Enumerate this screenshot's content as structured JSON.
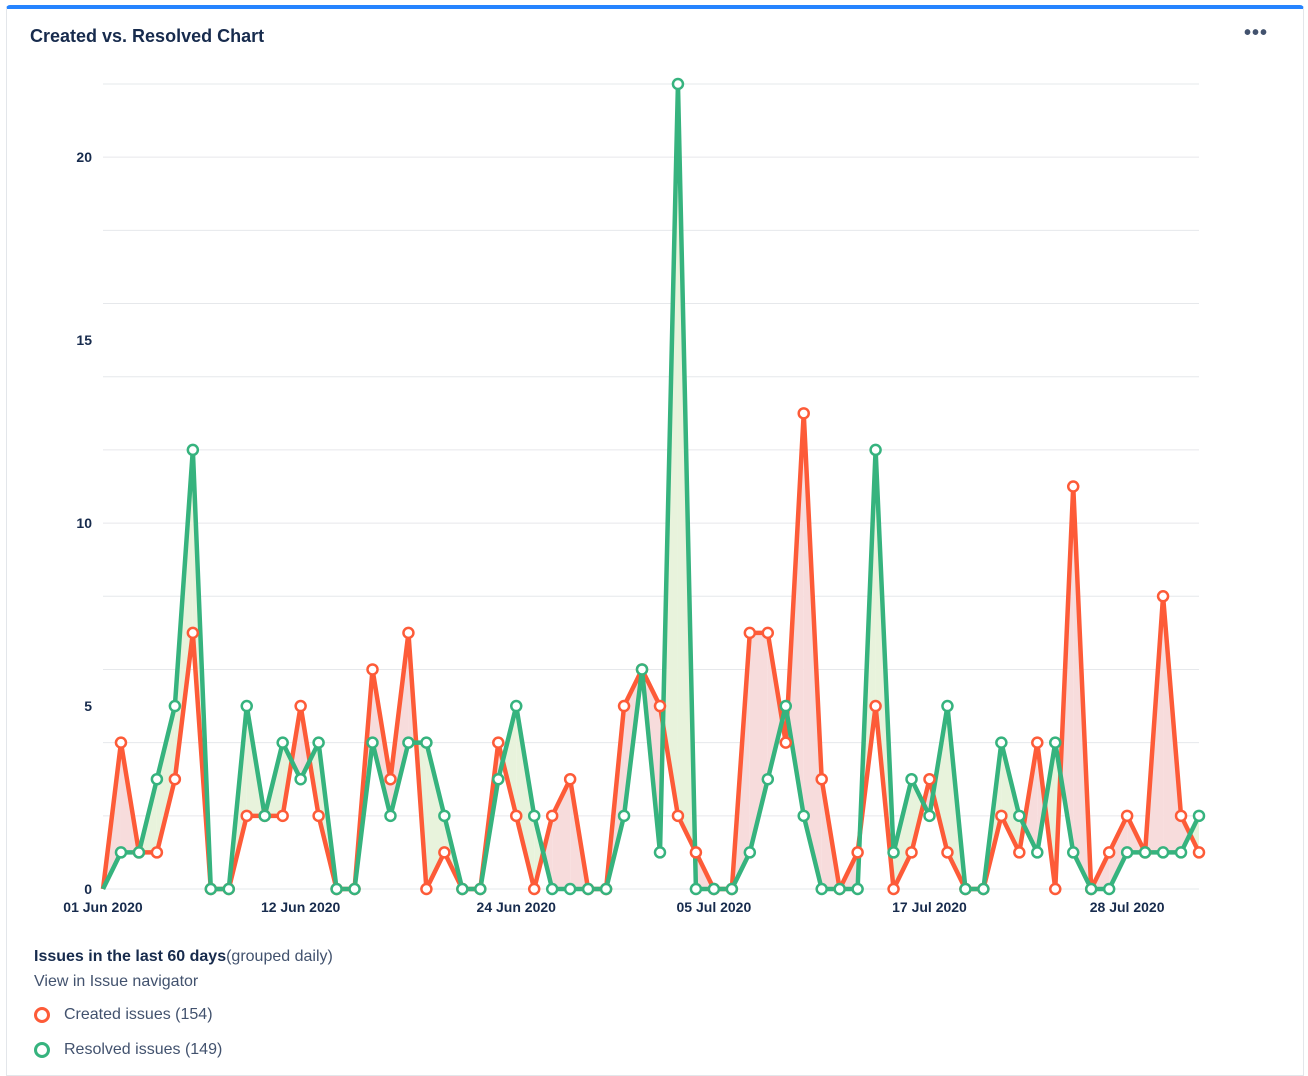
{
  "header": {
    "title": "Created vs. Resolved Chart",
    "menu_label": "•••"
  },
  "summary": {
    "bold": "Issues in the last 60 days",
    "suffix": "(grouped daily)",
    "link": "View in Issue navigator"
  },
  "legend": {
    "created": "Created issues (154)",
    "resolved": "Resolved issues (149)"
  },
  "colors": {
    "created": "#fd5b38",
    "resolved": "#36b37e",
    "created_fill": "#f7dcdc",
    "resolved_fill": "#e8f3dc",
    "grid": "#e6e8eb",
    "accent": "#2684ff"
  },
  "chart_data": {
    "type": "line",
    "title": "Created vs. Resolved Chart",
    "xlabel": "",
    "ylabel": "",
    "ylim": [
      0,
      22
    ],
    "yticks": [
      "0",
      "5",
      "10",
      "15",
      "20"
    ],
    "xticks": [
      {
        "label": "01 Jun 2020",
        "index": 0
      },
      {
        "label": "12 Jun 2020",
        "index": 11
      },
      {
        "label": "24 Jun 2020",
        "index": 23
      },
      {
        "label": "05 Jul 2020",
        "index": 34
      },
      {
        "label": "17 Jul 2020",
        "index": 46
      },
      {
        "label": "28 Jul 2020",
        "index": 57
      }
    ],
    "series": [
      {
        "name": "Created issues",
        "values": [
          0,
          4,
          1,
          1,
          3,
          7,
          0,
          0,
          2,
          2,
          2,
          5,
          2,
          0,
          0,
          6,
          3,
          7,
          0,
          1,
          0,
          0,
          4,
          2,
          0,
          2,
          3,
          0,
          0,
          5,
          6,
          5,
          2,
          1,
          0,
          0,
          7,
          7,
          4,
          13,
          3,
          0,
          1,
          5,
          0,
          1,
          3,
          1,
          0,
          0,
          2,
          1,
          4,
          0,
          11,
          0,
          1,
          2,
          1,
          8,
          2,
          1
        ]
      },
      {
        "name": "Resolved issues",
        "values": [
          0,
          1,
          1,
          3,
          5,
          12,
          0,
          0,
          5,
          2,
          4,
          3,
          4,
          0,
          0,
          4,
          2,
          4,
          4,
          2,
          0,
          0,
          3,
          5,
          2,
          0,
          0,
          0,
          0,
          2,
          6,
          1,
          22,
          0,
          0,
          0,
          1,
          3,
          5,
          2,
          0,
          0,
          0,
          12,
          1,
          3,
          2,
          5,
          0,
          0,
          4,
          2,
          1,
          4,
          1,
          0,
          0,
          1,
          1,
          1,
          1,
          2
        ]
      }
    ]
  }
}
